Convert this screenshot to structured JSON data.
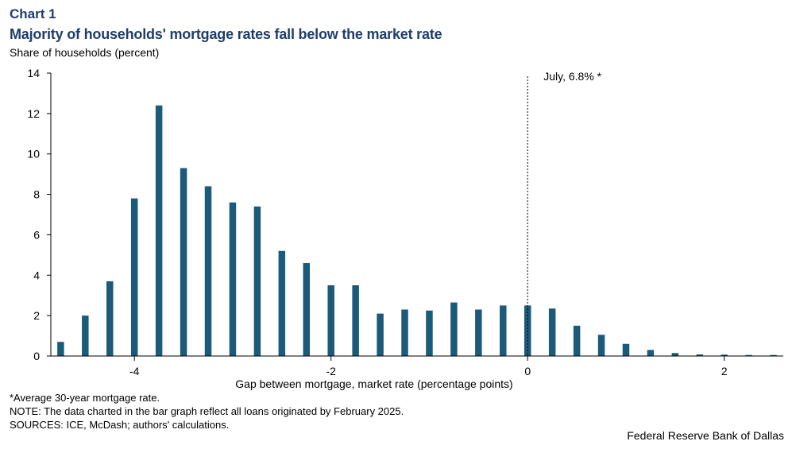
{
  "header": {
    "chart_number": "Chart 1",
    "title": "Majority of households' mortgage rates fall below the market rate",
    "ylabel": "Share of households (percent)"
  },
  "footer": {
    "note1": "*Average 30-year mortgage rate.",
    "note2": "NOTE: The data charted in the bar graph reflect all loans originated by February 2025.",
    "note3": "SOURCES: ICE, McDash; authors' calculations.",
    "credit": "Federal Reserve Bank of Dallas"
  },
  "colors": {
    "bar": "#1b5a7a",
    "title": "#1f3d6b"
  },
  "chart_data": {
    "type": "bar",
    "title": "Majority of households' mortgage rates fall below the market rate",
    "xlabel": "Gap between mortgage, market rate (percentage points)",
    "ylabel": "Share of households (percent)",
    "x": [
      -4.75,
      -4.5,
      -4.25,
      -4.0,
      -3.75,
      -3.5,
      -3.25,
      -3.0,
      -2.75,
      -2.5,
      -2.25,
      -2.0,
      -1.75,
      -1.5,
      -1.25,
      -1.0,
      -0.75,
      -0.5,
      -0.25,
      0.0,
      0.25,
      0.5,
      0.75,
      1.0,
      1.25,
      1.5,
      1.75,
      2.0,
      2.25,
      2.5
    ],
    "values": [
      0.7,
      2.0,
      3.7,
      7.8,
      12.4,
      9.3,
      8.4,
      7.6,
      7.4,
      5.2,
      4.6,
      3.5,
      3.5,
      2.1,
      2.3,
      2.25,
      2.65,
      2.3,
      2.5,
      2.5,
      2.35,
      1.5,
      1.05,
      0.6,
      0.3,
      0.15,
      0.08,
      0.07,
      0.05,
      0.05
    ],
    "xlim": [
      -4.85,
      2.6
    ],
    "ylim": [
      0,
      14
    ],
    "y_ticks": [
      0,
      2,
      4,
      6,
      8,
      10,
      12,
      14
    ],
    "y_tick_labels": [
      "0",
      "2",
      "4",
      "6",
      "8",
      "10",
      "12",
      "14"
    ],
    "x_ticks": [
      -4,
      -2,
      0,
      2
    ],
    "x_tick_labels": [
      "-4",
      "-2",
      "0",
      "2"
    ],
    "grid": false,
    "annotation": {
      "x": 0.0,
      "text": "July, 6.8% *"
    }
  }
}
